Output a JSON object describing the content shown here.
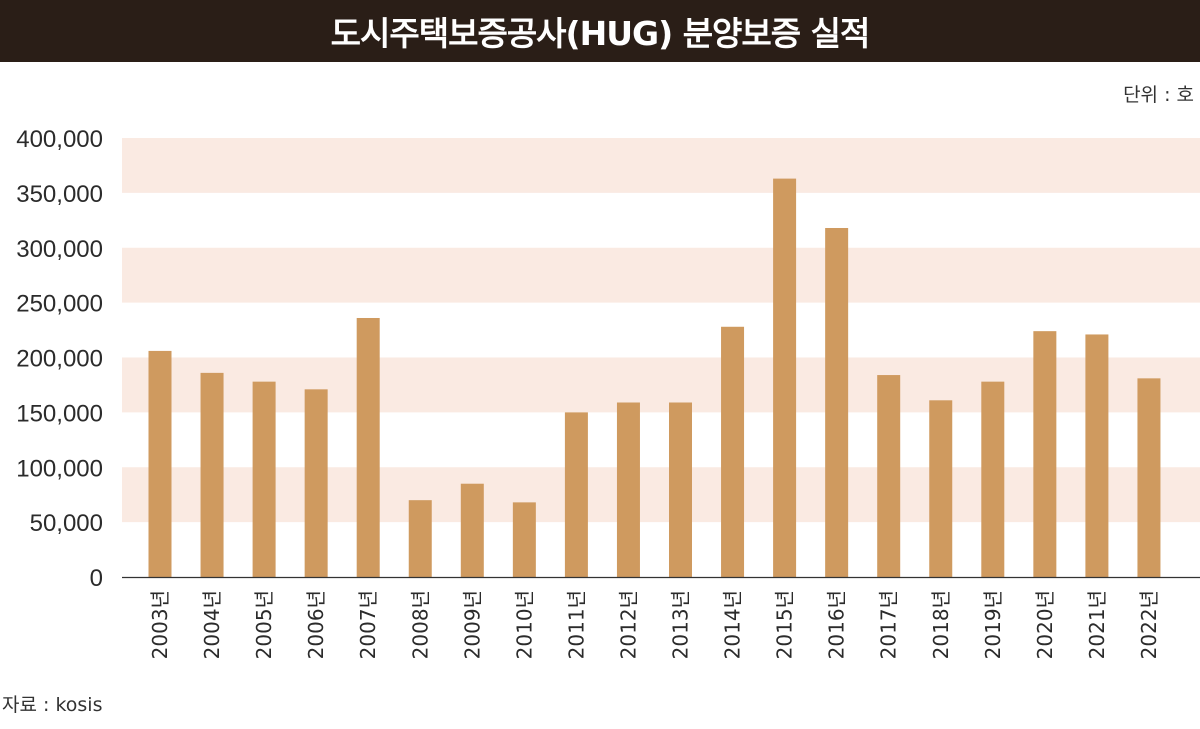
{
  "header": {
    "title": "도시주택보증공사(HUG) 분양보증 실적"
  },
  "unit": "단위 : 호",
  "source": "자료 : kosis",
  "colors": {
    "bar": "#cf9a5f",
    "band": "#faeae2",
    "title_bg": "#2a1e17",
    "axis": "#333333"
  },
  "chart_data": {
    "type": "bar",
    "title": "도시주택보증공사(HUG) 분양보증 실적",
    "xlabel": "",
    "ylabel": "",
    "ylim": [
      0,
      400000
    ],
    "yticks": [
      "400,000",
      "350,000",
      "300,000",
      "250,000",
      "200,000",
      "150,000",
      "100,000",
      "50,000",
      "0"
    ],
    "ytick_values": [
      400000,
      350000,
      300000,
      250000,
      200000,
      150000,
      100000,
      50000,
      0
    ],
    "categories": [
      "2003년",
      "2004년",
      "2005년",
      "2006년",
      "2007년",
      "2008년",
      "2009년",
      "2010년",
      "2011년",
      "2012년",
      "2013년",
      "2014년",
      "2015년",
      "2016년",
      "2017년",
      "2018년",
      "2019년",
      "2020년",
      "2021년",
      "2022년"
    ],
    "values": [
      206000,
      186000,
      178000,
      171000,
      236000,
      70000,
      85000,
      68000,
      150000,
      159000,
      159000,
      228000,
      363000,
      318000,
      184000,
      161000,
      178000,
      224000,
      221000,
      181000
    ],
    "grid": "alternating horizontal bands",
    "legend": "none"
  }
}
